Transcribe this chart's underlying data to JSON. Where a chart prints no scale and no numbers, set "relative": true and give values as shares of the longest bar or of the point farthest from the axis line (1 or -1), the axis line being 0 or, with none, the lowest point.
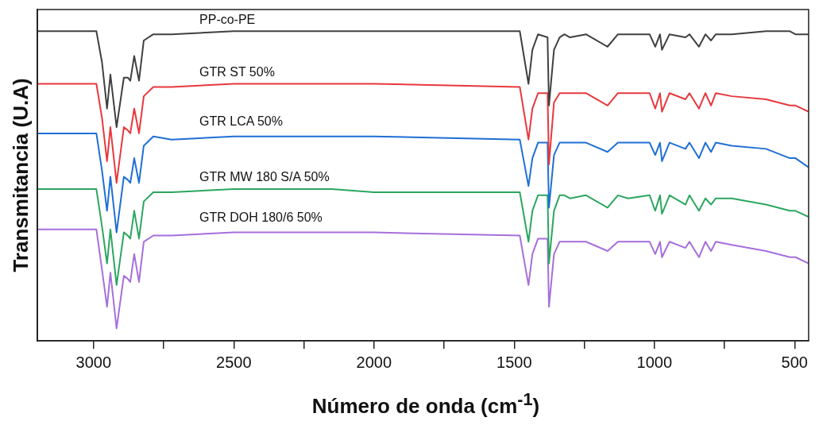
{
  "chart_data": {
    "type": "line",
    "relative": true,
    "xlabel": "Número de onda (cm$^{-1}$)",
    "ylabel": "Transmitancia (U.A)",
    "xlim": [
      3200,
      450
    ],
    "xticks": [
      3000,
      {
        "value": 2750,
        "label": null
      },
      2500,
      {
        "value": 2250,
        "label": null
      },
      2000,
      {
        "value": 1750,
        "label": null
      },
      1500,
      {
        "value": 1250,
        "label": null
      },
      1000,
      {
        "value": 750,
        "label": null
      },
      500
    ],
    "x": [
      3200,
      2990,
      2970,
      2952,
      2940,
      2918,
      2892,
      2878,
      2869,
      2855,
      2838,
      2821,
      2787,
      2722,
      2500,
      2150,
      2000,
      1480,
      1449,
      1435,
      1415,
      1381,
      1376,
      1358,
      1338,
      1321,
      1301,
      1244,
      1167,
      1130,
      1094,
      1017,
      997,
      980,
      973,
      946,
      889,
      875,
      841,
      818,
      798,
      781,
      724,
      602,
      517,
      497,
      450
    ],
    "series": [
      {
        "name": "PP-co-PE",
        "color": "#404040",
        "values": [
          1.0,
          1.0,
          0.9,
          0.75,
          0.86,
          0.69,
          0.85,
          0.85,
          0.84,
          0.92,
          0.84,
          0.97,
          0.99,
          0.99,
          1.0,
          1.0,
          1.0,
          1.0,
          0.83,
          0.94,
          0.99,
          0.98,
          0.76,
          0.94,
          0.98,
          0.99,
          0.98,
          0.99,
          0.95,
          0.99,
          0.99,
          0.99,
          0.95,
          0.99,
          0.94,
          0.99,
          0.98,
          0.99,
          0.95,
          0.99,
          0.97,
          0.99,
          0.99,
          1.0,
          1.0,
          0.99,
          0.99
        ]
      },
      {
        "name": "GTR ST 50%",
        "color": "#e8383d",
        "values": [
          0.83,
          0.83,
          0.72,
          0.58,
          0.69,
          0.51,
          0.69,
          0.68,
          0.67,
          0.75,
          0.67,
          0.79,
          0.82,
          0.82,
          0.83,
          0.83,
          0.83,
          0.82,
          0.65,
          0.75,
          0.8,
          0.8,
          0.57,
          0.77,
          0.8,
          0.8,
          0.8,
          0.8,
          0.76,
          0.8,
          0.8,
          0.8,
          0.75,
          0.8,
          0.74,
          0.8,
          0.78,
          0.8,
          0.75,
          0.8,
          0.76,
          0.8,
          0.79,
          0.78,
          0.76,
          0.76,
          0.74
        ]
      },
      {
        "name": "GTR LCA 50%",
        "color": "#1f6fd6",
        "values": [
          0.67,
          0.67,
          0.55,
          0.42,
          0.53,
          0.35,
          0.53,
          0.52,
          0.51,
          0.59,
          0.51,
          0.63,
          0.66,
          0.65,
          0.66,
          0.66,
          0.66,
          0.65,
          0.5,
          0.59,
          0.64,
          0.64,
          0.43,
          0.6,
          0.64,
          0.64,
          0.64,
          0.64,
          0.61,
          0.64,
          0.64,
          0.64,
          0.6,
          0.64,
          0.58,
          0.64,
          0.62,
          0.64,
          0.59,
          0.64,
          0.61,
          0.64,
          0.63,
          0.62,
          0.59,
          0.59,
          0.56
        ]
      },
      {
        "name": "GTR MW 180 S/A 50%",
        "color": "#2ca65f",
        "values": [
          0.49,
          0.49,
          0.37,
          0.25,
          0.36,
          0.18,
          0.35,
          0.34,
          0.33,
          0.42,
          0.33,
          0.45,
          0.48,
          0.48,
          0.49,
          0.49,
          0.48,
          0.48,
          0.32,
          0.42,
          0.47,
          0.47,
          0.25,
          0.42,
          0.47,
          0.47,
          0.46,
          0.47,
          0.43,
          0.47,
          0.46,
          0.47,
          0.42,
          0.47,
          0.41,
          0.47,
          0.44,
          0.47,
          0.42,
          0.46,
          0.44,
          0.46,
          0.46,
          0.44,
          0.42,
          0.42,
          0.4
        ]
      },
      {
        "name": "GTR DOH 180/6 50%",
        "color": "#a66fdc",
        "values": [
          0.36,
          0.36,
          0.23,
          0.11,
          0.22,
          0.04,
          0.21,
          0.2,
          0.19,
          0.28,
          0.19,
          0.32,
          0.34,
          0.34,
          0.35,
          0.35,
          0.35,
          0.34,
          0.18,
          0.28,
          0.33,
          0.33,
          0.11,
          0.28,
          0.32,
          0.32,
          0.32,
          0.32,
          0.29,
          0.32,
          0.32,
          0.32,
          0.28,
          0.32,
          0.27,
          0.32,
          0.3,
          0.32,
          0.27,
          0.32,
          0.29,
          0.32,
          0.31,
          0.29,
          0.27,
          0.27,
          0.25
        ]
      }
    ],
    "grid": false,
    "legend": false,
    "marker": "none",
    "line_style": "solid"
  }
}
